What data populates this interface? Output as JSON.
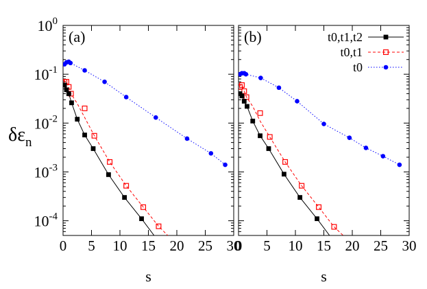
{
  "figure": {
    "ylabel_main": "δε",
    "ylabel_sub": "n"
  },
  "chart_data": [
    {
      "type": "scatter",
      "panel_label": "(a)",
      "xlabel": "s",
      "xlim": [
        0,
        30
      ],
      "ylim": [
        5e-05,
        1
      ],
      "yscale": "log",
      "xticks": [
        "0",
        "5",
        "10",
        "15",
        "20",
        "25",
        "30"
      ],
      "yticks": [
        {
          "base": "10",
          "exp": "0",
          "value": 1
        },
        {
          "base": "10",
          "exp": "-1",
          "value": 0.1
        },
        {
          "base": "10",
          "exp": "-2",
          "value": 0.01
        },
        {
          "base": "10",
          "exp": "-3",
          "value": 0.001
        },
        {
          "base": "10",
          "exp": "-4",
          "value": 0.0001
        }
      ],
      "grid": false,
      "legend": null,
      "series": [
        {
          "name": "t0",
          "color": "#0000ff",
          "line": "dotted",
          "marker": "filled-circle",
          "x": [
            0.25,
            0.6,
            1.0,
            1.3,
            3.8,
            7.3,
            11.1,
            16.3,
            21.8,
            26.0,
            28.5
          ],
          "y": [
            0.16,
            0.175,
            0.18,
            0.17,
            0.12,
            0.07,
            0.034,
            0.013,
            0.0048,
            0.0024,
            0.0014
          ]
        },
        {
          "name": "t0,t1",
          "color": "#ff0000",
          "line": "dashed",
          "marker": "open-square",
          "x": [
            0.25,
            0.6,
            1.0,
            1.4,
            3.8,
            5.5,
            8.2,
            11.1,
            14.1,
            16.8
          ],
          "y": [
            0.07,
            0.07,
            0.055,
            0.04,
            0.02,
            0.0055,
            0.0016,
            0.00052,
            0.00019,
            7.7e-05
          ],
          "curve_x": [
            0,
            0.6,
            1.0,
            1.4,
            2.5,
            3.8,
            5.5,
            8.2,
            11.1,
            14.1,
            16.8,
            18.4
          ],
          "curve_y": [
            0.075,
            0.07,
            0.055,
            0.04,
            0.025,
            0.013,
            0.0055,
            0.0016,
            0.00052,
            0.00019,
            7.7e-05,
            5e-05
          ]
        },
        {
          "name": "t0,t1,t2",
          "color": "#000000",
          "line": "solid",
          "marker": "filled-square",
          "x": [
            0.25,
            0.6,
            1.0,
            1.5,
            2.5,
            3.8,
            5.3,
            8.0,
            10.8,
            13.8
          ],
          "y": [
            0.06,
            0.048,
            0.04,
            0.026,
            0.012,
            0.0057,
            0.003,
            0.00088,
            0.0003,
            0.00011
          ],
          "curve_x": [
            0,
            0.6,
            1.0,
            1.5,
            2.5,
            3.8,
            5.3,
            8.0,
            10.8,
            13.8,
            16.0
          ],
          "curve_y": [
            0.065,
            0.048,
            0.04,
            0.026,
            0.012,
            0.0057,
            0.003,
            0.00088,
            0.0003,
            0.00011,
            5e-05
          ]
        }
      ]
    },
    {
      "type": "scatter",
      "panel_label": "(b)",
      "xlabel": "s",
      "xlim": [
        0,
        30
      ],
      "ylim": [
        5e-05,
        1
      ],
      "yscale": "log",
      "xticks": [
        "0",
        "5",
        "10",
        "15",
        "20",
        "25",
        "30"
      ],
      "yticks": [],
      "grid": false,
      "legend": "top-right",
      "series": [
        {
          "name": "t0",
          "color": "#0000ff",
          "line": "dotted",
          "marker": "filled-circle",
          "x": [
            0.25,
            0.6,
            1.0,
            1.3,
            3.9,
            7.1,
            10.3,
            15.0,
            19.5,
            22.4,
            25.4,
            28.3
          ],
          "y": [
            0.1,
            0.105,
            0.105,
            0.1,
            0.084,
            0.053,
            0.028,
            0.0096,
            0.005,
            0.0031,
            0.0021,
            0.0014
          ]
        },
        {
          "name": "t0,t1",
          "color": "#ff0000",
          "line": "dashed",
          "marker": "open-square",
          "x": [
            0.25,
            0.6,
            1.0,
            1.4,
            3.8,
            5.5,
            8.2,
            11.1,
            14.1,
            16.8
          ],
          "y": [
            0.055,
            0.06,
            0.045,
            0.034,
            0.016,
            0.0052,
            0.0016,
            0.00052,
            0.00019,
            7.5e-05
          ],
          "curve_x": [
            0,
            0.6,
            1.0,
            1.4,
            2.5,
            3.8,
            5.5,
            8.2,
            11.1,
            14.1,
            16.8,
            18.4
          ],
          "curve_y": [
            0.06,
            0.06,
            0.045,
            0.034,
            0.022,
            0.011,
            0.0052,
            0.0016,
            0.00052,
            0.00019,
            7.5e-05,
            5e-05
          ]
        },
        {
          "name": "t0,t1,t2",
          "color": "#000000",
          "line": "solid",
          "marker": "filled-square",
          "x": [
            0.25,
            0.6,
            1.0,
            1.5,
            2.5,
            3.8,
            5.3,
            8.0,
            10.8,
            13.8
          ],
          "y": [
            0.04,
            0.036,
            0.028,
            0.022,
            0.011,
            0.0055,
            0.003,
            0.0009,
            0.0003,
            0.00011
          ],
          "curve_x": [
            0,
            0.6,
            1.0,
            1.5,
            2.5,
            3.8,
            5.3,
            8.0,
            10.8,
            13.8,
            16.0
          ],
          "curve_y": [
            0.045,
            0.036,
            0.028,
            0.022,
            0.011,
            0.0055,
            0.003,
            0.0009,
            0.0003,
            0.00011,
            5e-05
          ]
        }
      ]
    }
  ]
}
